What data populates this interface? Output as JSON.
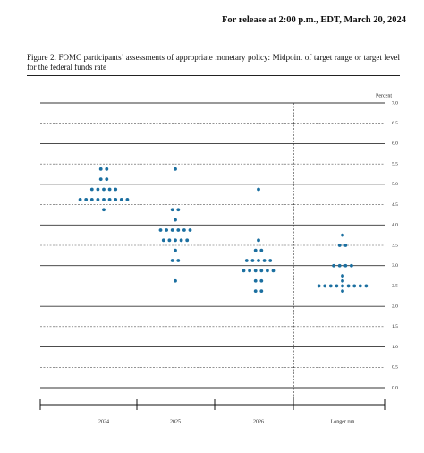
{
  "release": "For release at 2:00 p.m., EDT, March 20, 2024",
  "chart_data": {
    "type": "dot",
    "title": "Figure 2.  FOMC participants’ assessments of appropriate monetary policy:  Midpoint of target range or target level for the federal funds rate",
    "y_label": "Percent",
    "categories": [
      "2024",
      "2025",
      "2026",
      "Longer run"
    ],
    "series": [
      {
        "name": null,
        "color": "#1b6fa0",
        "values": [
          [
            5.375,
            5.375,
            5.125,
            5.125,
            4.875,
            4.875,
            4.875,
            4.875,
            4.875,
            4.625,
            4.625,
            4.625,
            4.625,
            4.625,
            4.625,
            4.625,
            4.625,
            4.625,
            4.375
          ],
          [
            5.375,
            4.375,
            4.375,
            4.125,
            3.875,
            3.875,
            3.875,
            3.875,
            3.875,
            3.875,
            3.625,
            3.625,
            3.625,
            3.625,
            3.625,
            3.375,
            3.125,
            3.125,
            2.625
          ],
          [
            4.875,
            3.625,
            3.375,
            3.375,
            3.125,
            3.125,
            3.125,
            3.125,
            3.125,
            2.875,
            2.875,
            2.875,
            2.875,
            2.875,
            2.875,
            2.625,
            2.625,
            2.375,
            2.375
          ],
          [
            3.75,
            3.5,
            3.5,
            3.0,
            3.0,
            3.0,
            3.0,
            2.75,
            2.625,
            2.5,
            2.5,
            2.5,
            2.5,
            2.5,
            2.5,
            2.5,
            2.5,
            2.5,
            2.375
          ]
        ]
      }
    ],
    "ylim": [
      0,
      7
    ],
    "yticks": [
      {
        "value": 0,
        "label": "0.0"
      },
      {
        "value": 0.5,
        "label": "0.5"
      },
      {
        "value": 1,
        "label": "1.0"
      },
      {
        "value": 1.5,
        "label": "1.5"
      },
      {
        "value": 2,
        "label": "2.0"
      },
      {
        "value": 2.5,
        "label": "2.5"
      },
      {
        "value": 3,
        "label": "3.0"
      },
      {
        "value": 3.5,
        "label": "3.5"
      },
      {
        "value": 4,
        "label": "4.0"
      },
      {
        "value": 4.5,
        "label": "4.5"
      },
      {
        "value": 5,
        "label": "5.0"
      },
      {
        "value": 5.5,
        "label": "5.5"
      },
      {
        "value": 6,
        "label": "6.0"
      },
      {
        "value": 6.5,
        "label": "6.5"
      },
      {
        "value": 7,
        "label": "7.0"
      }
    ],
    "grid": true
  }
}
